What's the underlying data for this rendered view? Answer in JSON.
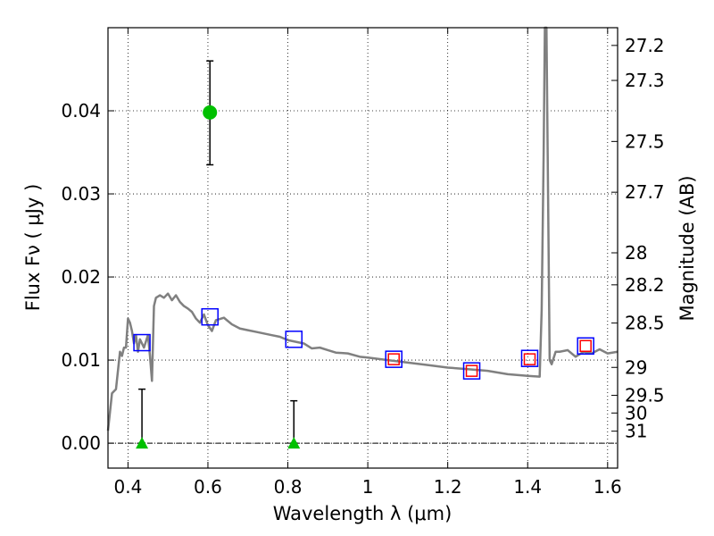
{
  "chart_data": {
    "type": "scatter",
    "title": "",
    "xlabel": "Wavelength  λ (μm)",
    "ylabel": "Flux  Fν  ( μJy )",
    "y2label": "Magnitude (AB)",
    "xlim": [
      0.35,
      1.625
    ],
    "ylim": [
      -0.003,
      0.05
    ],
    "grid": true,
    "legend": "none",
    "x_ticks": [
      {
        "value": 0.4,
        "label": "0.4"
      },
      {
        "value": 0.6,
        "label": "0.6"
      },
      {
        "value": 0.8,
        "label": "0.8"
      },
      {
        "value": 1.0,
        "label": "1"
      },
      {
        "value": 1.2,
        "label": "1.2"
      },
      {
        "value": 1.4,
        "label": "1.4"
      },
      {
        "value": 1.6,
        "label": "1.6"
      }
    ],
    "y_ticks": [
      {
        "value": 0.0,
        "label": "0.00"
      },
      {
        "value": 0.01,
        "label": "0.01"
      },
      {
        "value": 0.02,
        "label": "0.02"
      },
      {
        "value": 0.03,
        "label": "0.03"
      },
      {
        "value": 0.04,
        "label": "0.04"
      }
    ],
    "y2_ticks": [
      {
        "value": 27.2,
        "label": "27.2"
      },
      {
        "value": 27.3,
        "label": "27.3"
      },
      {
        "value": 27.5,
        "label": "27.5"
      },
      {
        "value": 27.7,
        "label": "27.7"
      },
      {
        "value": 28,
        "label": "28"
      },
      {
        "value": 28.2,
        "label": "28.2"
      },
      {
        "value": 28.5,
        "label": "28.5"
      },
      {
        "value": 29,
        "label": "29"
      },
      {
        "value": 29.5,
        "label": "29.5"
      },
      {
        "value": 30,
        "label": "30"
      },
      {
        "value": 31,
        "label": "31"
      }
    ],
    "series": [
      {
        "kind": "line",
        "color": "#808080",
        "x": [
          0.35,
          0.36,
          0.37,
          0.38,
          0.385,
          0.39,
          0.395,
          0.4,
          0.405,
          0.41,
          0.415,
          0.42,
          0.425,
          0.43,
          0.44,
          0.45,
          0.455,
          0.46,
          0.465,
          0.47,
          0.48,
          0.49,
          0.5,
          0.51,
          0.52,
          0.53,
          0.54,
          0.55,
          0.56,
          0.57,
          0.58,
          0.59,
          0.6,
          0.61,
          0.62,
          0.64,
          0.66,
          0.68,
          0.7,
          0.72,
          0.74,
          0.76,
          0.78,
          0.8,
          0.82,
          0.84,
          0.86,
          0.88,
          0.9,
          0.92,
          0.95,
          0.98,
          1.0,
          1.05,
          1.1,
          1.15,
          1.2,
          1.25,
          1.3,
          1.35,
          1.4,
          1.43,
          1.435,
          1.44,
          1.443,
          1.447,
          1.45,
          1.455,
          1.46,
          1.47,
          1.48,
          1.5,
          1.52,
          1.54,
          1.56,
          1.58,
          1.6,
          1.625
        ],
        "y": [
          0.0015,
          0.006,
          0.0065,
          0.011,
          0.0105,
          0.0115,
          0.0115,
          0.015,
          0.0145,
          0.0135,
          0.012,
          0.013,
          0.011,
          0.0125,
          0.0115,
          0.013,
          0.0105,
          0.0075,
          0.0165,
          0.0175,
          0.0178,
          0.0175,
          0.018,
          0.0172,
          0.0178,
          0.017,
          0.0165,
          0.0162,
          0.0158,
          0.015,
          0.0145,
          0.0155,
          0.0142,
          0.0135,
          0.0148,
          0.0151,
          0.0143,
          0.0138,
          0.0136,
          0.0134,
          0.0132,
          0.013,
          0.0128,
          0.0124,
          0.0122,
          0.012,
          0.0114,
          0.0115,
          0.0112,
          0.0109,
          0.0108,
          0.0104,
          0.0103,
          0.01,
          0.0097,
          0.0094,
          0.0091,
          0.0089,
          0.0087,
          0.0083,
          0.0081,
          0.008,
          0.016,
          0.035,
          0.05,
          0.05,
          0.035,
          0.01,
          0.0095,
          0.011,
          0.011,
          0.0112,
          0.0104,
          0.011,
          0.0108,
          0.0113,
          0.0108,
          0.011
        ]
      },
      {
        "kind": "open-square",
        "color": "#0000ff",
        "x": [
          0.435,
          0.605,
          0.815,
          1.065,
          1.26,
          1.405,
          1.545
        ],
        "y": [
          0.0121,
          0.0152,
          0.0125,
          0.0101,
          0.0087,
          0.0102,
          0.0117
        ]
      },
      {
        "kind": "open-square",
        "color": "#ff0000",
        "x": [
          1.065,
          1.26,
          1.405,
          1.545
        ],
        "y": [
          0.0101,
          0.0087,
          0.0101,
          0.0117
        ]
      },
      {
        "kind": "circle-errorbar",
        "color": "#00c000",
        "x": [
          0.605
        ],
        "y": [
          0.0398
        ],
        "yerr_low": [
          0.0335
        ],
        "yerr_high": [
          0.046
        ]
      },
      {
        "kind": "triangle-errorbar",
        "color": "#00c000",
        "x": [
          0.435,
          0.815
        ],
        "y": [
          0.0,
          0.0
        ],
        "yerr_low": [
          0.0,
          0.0
        ],
        "yerr_high": [
          0.0065,
          0.0051
        ]
      }
    ]
  }
}
